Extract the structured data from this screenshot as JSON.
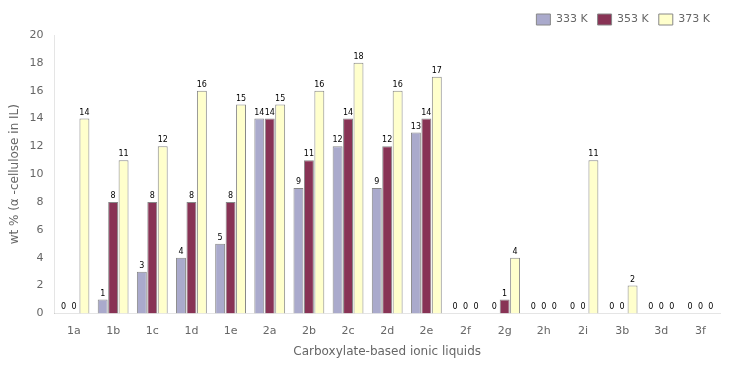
{
  "chart_data": {
    "type": "bar",
    "xlabel": "Carboxylate-based ionic liquids",
    "ylabel": "wt % (α -cellulose in IL)",
    "categories": [
      "1a",
      "1b",
      "1c",
      "1d",
      "1e",
      "2a",
      "2b",
      "2c",
      "2d",
      "2e",
      "2f",
      "2g",
      "2h",
      "2i",
      "3b",
      "3d",
      "3f"
    ],
    "series": [
      {
        "name": "333 K",
        "color": "#aaaacc",
        "values": [
          0,
          1,
          3,
          4,
          5,
          14,
          9,
          12,
          9,
          13,
          0,
          0,
          0,
          0,
          0,
          0,
          0
        ]
      },
      {
        "name": "353 K",
        "color": "#883355",
        "values": [
          0,
          8,
          8,
          8,
          8,
          14,
          11,
          14,
          12,
          14,
          0,
          1,
          0,
          0,
          0,
          0,
          0
        ]
      },
      {
        "name": "373 K",
        "color": "#ffffcc",
        "values": [
          14,
          11,
          12,
          16,
          15,
          15,
          16,
          18,
          16,
          17,
          0,
          4,
          0,
          11,
          2,
          0,
          0
        ]
      }
    ],
    "ylim": [
      0,
      20
    ],
    "yticks": [
      0,
      2,
      4,
      6,
      8,
      10,
      12,
      14,
      16,
      18,
      20
    ],
    "grid": false,
    "legend": "upper right",
    "data_labels": true
  }
}
